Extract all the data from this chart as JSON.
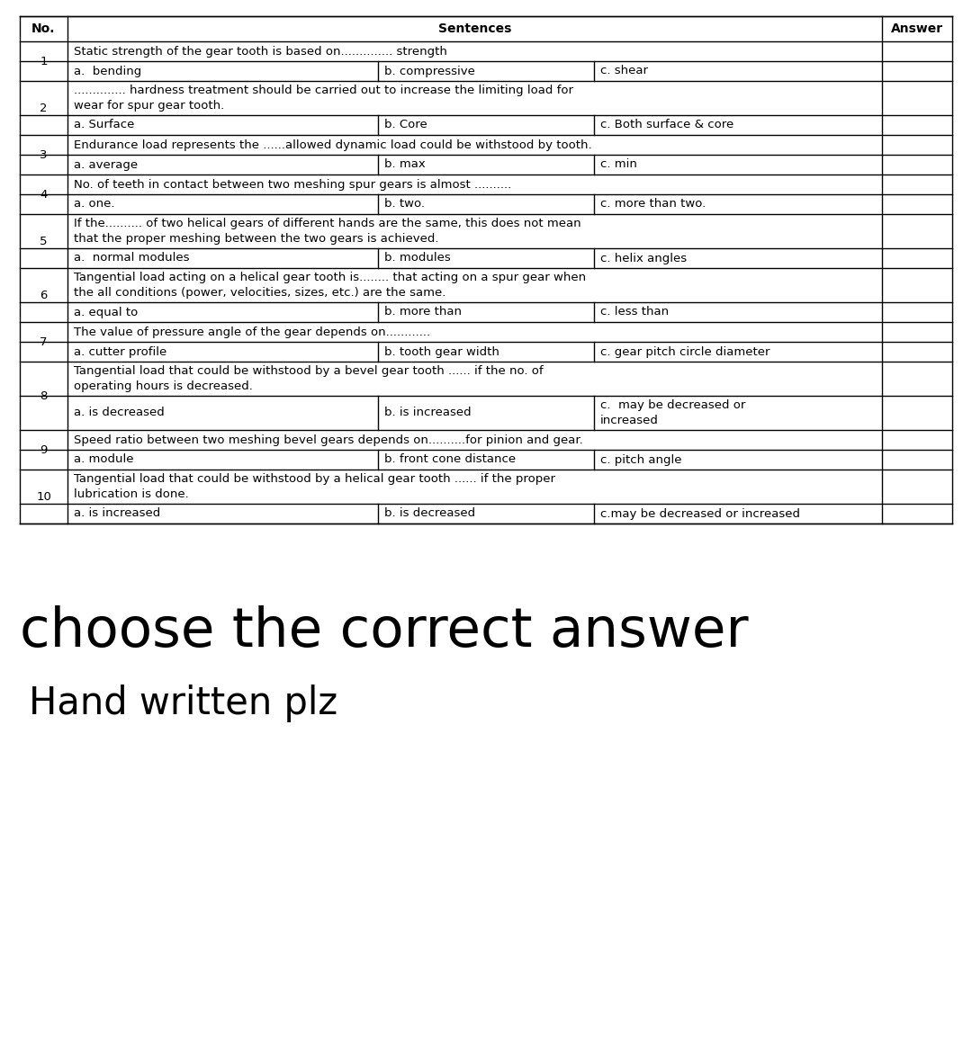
{
  "bg_color": "#ffffff",
  "text_color": "#000000",
  "header": {
    "no": "No.",
    "sentences": "Sentences",
    "answer": "Answer"
  },
  "questions": [
    {
      "no": "1",
      "text1": "Static strength of the gear tooth is based on.............. strength",
      "text2": null,
      "choices": [
        "a.  bending",
        "b. compressive",
        "c. shear"
      ],
      "choice_wrap": false
    },
    {
      "no": "2",
      "text1": ".............. hardness treatment should be carried out to increase the limiting load for",
      "text2": "wear for spur gear tooth.",
      "choices": [
        "a. Surface",
        "b. Core",
        "c. Both surface & core"
      ],
      "choice_wrap": false
    },
    {
      "no": "3",
      "text1": "Endurance load represents the ......allowed dynamic load could be withstood by tooth.",
      "text2": null,
      "choices": [
        "a. average",
        "b. max",
        "c. min"
      ],
      "choice_wrap": false
    },
    {
      "no": "4",
      "text1": "No. of teeth in contact between two meshing spur gears is almost ..........",
      "text2": null,
      "choices": [
        "a. one.",
        "b. two.",
        "c. more than two."
      ],
      "choice_wrap": false
    },
    {
      "no": "5",
      "text1": "If the.......... of two helical gears of different hands are the same, this does not mean",
      "text2": "that the proper meshing between the two gears is achieved.",
      "choices": [
        "a.  normal modules",
        "b. modules",
        "c. helix angles"
      ],
      "choice_wrap": false
    },
    {
      "no": "6",
      "text1": "Tangential load acting on a helical gear tooth is........ that acting on a spur gear when",
      "text2": "the all conditions (power, velocities, sizes, etc.) are the same.",
      "choices": [
        "a. equal to",
        "b. more than",
        "c. less than"
      ],
      "choice_wrap": false
    },
    {
      "no": "7",
      "text1": "The value of pressure angle of the gear depends on............",
      "text2": null,
      "choices": [
        "a. cutter profile",
        "b. tooth gear width",
        "c. gear pitch circle diameter"
      ],
      "choice_wrap": false
    },
    {
      "no": "8",
      "text1": "Tangential load that could be withstood by a bevel gear tooth ...... if the no. of",
      "text2": "operating hours is decreased.",
      "choices": [
        "a. is decreased",
        "b. is increased",
        "c.  may be decreased or\nincreased"
      ],
      "choice_wrap": true
    },
    {
      "no": "9",
      "text1": "Speed ratio between two meshing bevel gears depends on..........for pinion and gear.",
      "text2": null,
      "choices": [
        "a. module",
        "b. front cone distance",
        "c. pitch angle"
      ],
      "choice_wrap": false
    },
    {
      "no": "10",
      "text1": "Tangential load that could be withstood by a helical gear tooth ...... if the proper",
      "text2": "lubrication is done.",
      "choices": [
        "a. is increased",
        "b. is decreased",
        "c.may be decreased or increased"
      ],
      "choice_wrap": false
    }
  ],
  "footer_text1": "choose the correct answer",
  "footer_text2": "Hand written plz",
  "fig_width": 10.8,
  "fig_height": 11.64,
  "dpi": 100
}
